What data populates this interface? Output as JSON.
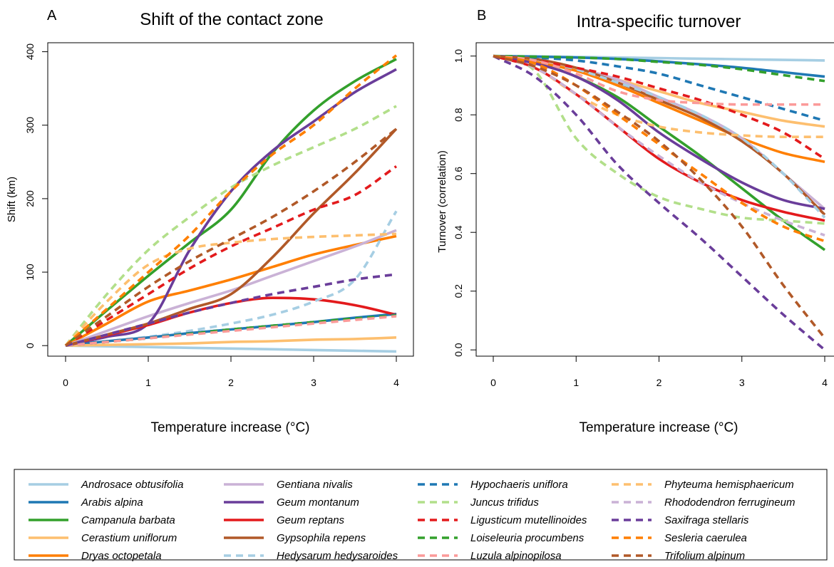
{
  "chart_data": [
    {
      "type": "line",
      "panel_letter": "A",
      "title": "Shift of the contact zone",
      "xlabel": "Temperature increase (°C)",
      "ylabel": "Shift (km)",
      "xlim": [
        0,
        4
      ],
      "ylim": [
        -10,
        400
      ],
      "xticks": [
        "0",
        "1",
        "2",
        "3",
        "4"
      ],
      "yticks": [
        "0",
        "100",
        "200",
        "300",
        "400"
      ],
      "ytick_values": [
        0,
        100,
        200,
        300,
        400
      ],
      "x": [
        0,
        0.5,
        1,
        1.5,
        2,
        2.5,
        3,
        3.5,
        4
      ],
      "series": [
        {
          "name": "Androsace obtusifolia",
          "color": "#a6cee3",
          "dash": false,
          "values": [
            0,
            -1,
            -2,
            -3,
            -4,
            -5,
            -6,
            -7,
            -8
          ]
        },
        {
          "name": "Arabis alpina",
          "color": "#1f78b4",
          "dash": false,
          "values": [
            0,
            6,
            11,
            17,
            22,
            27,
            32,
            38,
            43
          ]
        },
        {
          "name": "Campanula barbata",
          "color": "#33a02c",
          "dash": false,
          "values": [
            0,
            48,
            95,
            140,
            185,
            262,
            320,
            360,
            390
          ]
        },
        {
          "name": "Cerastium uniflorum",
          "color": "#fdbf6f",
          "dash": false,
          "values": [
            0,
            1,
            2,
            3,
            5,
            6,
            8,
            9,
            11
          ]
        },
        {
          "name": "Dryas octopetala",
          "color": "#ff7f00",
          "dash": false,
          "values": [
            0,
            30,
            60,
            75,
            90,
            107,
            124,
            137,
            149
          ]
        },
        {
          "name": "Gentiana nivalis",
          "color": "#cab2d6",
          "dash": false,
          "values": [
            0,
            20,
            40,
            58,
            75,
            95,
            115,
            135,
            157
          ]
        },
        {
          "name": "Geum montanum",
          "color": "#6a3d9a",
          "dash": false,
          "values": [
            0,
            12,
            30,
            130,
            210,
            265,
            305,
            345,
            376
          ]
        },
        {
          "name": "Geum reptans",
          "color": "#e31a1c",
          "dash": false,
          "values": [
            0,
            14,
            28,
            45,
            58,
            65,
            63,
            55,
            42
          ]
        },
        {
          "name": "Gypsophila repens",
          "color": "#b15928",
          "dash": false,
          "values": [
            0,
            15,
            30,
            50,
            70,
            120,
            180,
            235,
            295
          ]
        },
        {
          "name": "Hedysarum hedysaroides",
          "color": "#a6cee3",
          "dash": true,
          "values": [
            0,
            6,
            12,
            20,
            30,
            42,
            60,
            90,
            183
          ]
        },
        {
          "name": "Hypochaeris uniflora",
          "color": "#1f78b4",
          "dash": true,
          "values": [
            0,
            6,
            11,
            17,
            22,
            27,
            32,
            37,
            42
          ]
        },
        {
          "name": "Juncus trifidus",
          "color": "#b2df8a",
          "dash": true,
          "values": [
            0,
            70,
            130,
            175,
            215,
            245,
            270,
            295,
            326
          ]
        },
        {
          "name": "Ligusticum mutellinoides",
          "color": "#e31a1c",
          "dash": true,
          "values": [
            0,
            35,
            70,
            105,
            135,
            160,
            185,
            205,
            244
          ]
        },
        {
          "name": "Loiseleuria procumbens",
          "color": "#33a02c",
          "dash": true,
          "values": [
            0,
            5,
            10,
            16,
            22,
            27,
            32,
            37,
            41
          ]
        },
        {
          "name": "Luzula alpinopilosa",
          "color": "#fb9a99",
          "dash": true,
          "values": [
            0,
            5,
            10,
            15,
            20,
            25,
            30,
            35,
            40
          ]
        },
        {
          "name": "Phyteuma hemisphaericum",
          "color": "#fdbf6f",
          "dash": true,
          "values": [
            0,
            60,
            110,
            132,
            140,
            145,
            148,
            150,
            152
          ]
        },
        {
          "name": "Rhododendron ferrugineum",
          "color": "#cab2d6",
          "dash": true,
          "values": [
            0,
            15,
            30,
            45,
            58,
            70,
            80,
            90,
            97
          ]
        },
        {
          "name": "Saxifraga stellaris",
          "color": "#6a3d9a",
          "dash": true,
          "values": [
            0,
            15,
            30,
            45,
            58,
            70,
            80,
            90,
            97
          ]
        },
        {
          "name": "Sesleria caerulea",
          "color": "#ff7f00",
          "dash": true,
          "values": [
            0,
            50,
            100,
            150,
            210,
            260,
            300,
            350,
            395
          ]
        },
        {
          "name": "Trifolium alpinum",
          "color": "#b15928",
          "dash": true,
          "values": [
            0,
            40,
            80,
            115,
            145,
            175,
            210,
            250,
            295
          ]
        }
      ]
    },
    {
      "type": "line",
      "panel_letter": "B",
      "title": "Intra-specific turnover",
      "xlabel": "Temperature increase (°C)",
      "ylabel": "Turnover (correlation)",
      "xlim": [
        0,
        4
      ],
      "ylim": [
        0,
        1
      ],
      "xticks": [
        "0",
        "1",
        "2",
        "3",
        "4"
      ],
      "yticks": [
        "0.0",
        "0.2",
        "0.4",
        "0.6",
        "0.8",
        "1.0"
      ],
      "ytick_values": [
        0,
        0.2,
        0.4,
        0.6,
        0.8,
        1.0
      ],
      "x": [
        0,
        0.5,
        1,
        1.5,
        2,
        2.5,
        3,
        3.5,
        4
      ],
      "series": [
        {
          "name": "Androsace obtusifolia",
          "color": "#a6cee3",
          "dash": false,
          "values": [
            1.0,
            0.999,
            0.997,
            0.995,
            0.993,
            0.991,
            0.989,
            0.987,
            0.985
          ]
        },
        {
          "name": "Arabis alpina",
          "color": "#1f78b4",
          "dash": false,
          "values": [
            1.0,
            0.998,
            0.995,
            0.99,
            0.982,
            0.972,
            0.96,
            0.945,
            0.93
          ]
        },
        {
          "name": "Campanula barbata",
          "color": "#33a02c",
          "dash": false,
          "values": [
            1.0,
            0.98,
            0.93,
            0.86,
            0.76,
            0.66,
            0.55,
            0.44,
            0.34
          ]
        },
        {
          "name": "Cerastium uniflorum",
          "color": "#fdbf6f",
          "dash": false,
          "values": [
            1.0,
            0.99,
            0.96,
            0.92,
            0.88,
            0.84,
            0.81,
            0.78,
            0.76
          ]
        },
        {
          "name": "Dryas octopetala",
          "color": "#ff7f00",
          "dash": false,
          "values": [
            1.0,
            0.98,
            0.95,
            0.9,
            0.84,
            0.78,
            0.72,
            0.67,
            0.64
          ]
        },
        {
          "name": "Gentiana nivalis",
          "color": "#cab2d6",
          "dash": false,
          "values": [
            1.0,
            0.99,
            0.96,
            0.92,
            0.86,
            0.8,
            0.72,
            0.6,
            0.48
          ]
        },
        {
          "name": "Geum montanum",
          "color": "#6a3d9a",
          "dash": false,
          "values": [
            1.0,
            0.975,
            0.93,
            0.85,
            0.74,
            0.65,
            0.57,
            0.51,
            0.48
          ]
        },
        {
          "name": "Geum reptans",
          "color": "#e31a1c",
          "dash": false,
          "values": [
            1.0,
            0.96,
            0.87,
            0.76,
            0.65,
            0.57,
            0.51,
            0.47,
            0.44
          ]
        },
        {
          "name": "Gypsophila repens",
          "color": "#b15928",
          "dash": false,
          "values": [
            1.0,
            0.99,
            0.96,
            0.91,
            0.85,
            0.79,
            0.71,
            0.6,
            0.46
          ]
        },
        {
          "name": "Hedysarum hedysaroides",
          "color": "#a6cee3",
          "dash": true,
          "values": [
            1.0,
            0.985,
            0.955,
            0.91,
            0.86,
            0.8,
            0.72,
            0.6,
            0.45
          ]
        },
        {
          "name": "Hypochaeris uniflora",
          "color": "#1f78b4",
          "dash": true,
          "values": [
            1.0,
            0.995,
            0.985,
            0.965,
            0.94,
            0.9,
            0.86,
            0.82,
            0.78
          ]
        },
        {
          "name": "Juncus trifidus",
          "color": "#b2df8a",
          "dash": true,
          "values": [
            1.0,
            0.95,
            0.72,
            0.6,
            0.52,
            0.48,
            0.45,
            0.44,
            0.43
          ]
        },
        {
          "name": "Ligusticum mutellinoides",
          "color": "#e31a1c",
          "dash": true,
          "values": [
            1.0,
            0.985,
            0.96,
            0.93,
            0.89,
            0.85,
            0.8,
            0.74,
            0.65
          ]
        },
        {
          "name": "Loiseleuria procumbens",
          "color": "#33a02c",
          "dash": true,
          "values": [
            1.0,
            0.998,
            0.995,
            0.99,
            0.98,
            0.97,
            0.955,
            0.935,
            0.915
          ]
        },
        {
          "name": "Luzula alpinopilosa",
          "color": "#fb9a99",
          "dash": true,
          "values": [
            1.0,
            0.985,
            0.94,
            0.88,
            0.85,
            0.84,
            0.835,
            0.835,
            0.835
          ]
        },
        {
          "name": "Phyteuma hemisphaericum",
          "color": "#fdbf6f",
          "dash": true,
          "values": [
            1.0,
            0.96,
            0.87,
            0.8,
            0.76,
            0.74,
            0.73,
            0.725,
            0.725
          ]
        },
        {
          "name": "Rhododendron ferrugineum",
          "color": "#cab2d6",
          "dash": true,
          "values": [
            1.0,
            0.96,
            0.87,
            0.76,
            0.66,
            0.57,
            0.5,
            0.44,
            0.39
          ]
        },
        {
          "name": "Saxifraga stellaris",
          "color": "#6a3d9a",
          "dash": true,
          "values": [
            1.0,
            0.93,
            0.8,
            0.63,
            0.5,
            0.38,
            0.25,
            0.12,
            0.0
          ]
        },
        {
          "name": "Sesleria caerulea",
          "color": "#ff7f00",
          "dash": true,
          "values": [
            1.0,
            0.975,
            0.9,
            0.8,
            0.7,
            0.6,
            0.5,
            0.42,
            0.37
          ]
        },
        {
          "name": "Trifolium alpinum",
          "color": "#b15928",
          "dash": true,
          "values": [
            1.0,
            0.965,
            0.9,
            0.81,
            0.71,
            0.58,
            0.42,
            0.22,
            0.04
          ]
        }
      ]
    }
  ],
  "legend": {
    "columns": [
      [
        {
          "name": "Androsace obtusifolia",
          "color": "#a6cee3",
          "dash": false
        },
        {
          "name": "Arabis alpina",
          "color": "#1f78b4",
          "dash": false
        },
        {
          "name": "Campanula barbata",
          "color": "#33a02c",
          "dash": false
        },
        {
          "name": "Cerastium uniflorum",
          "color": "#fdbf6f",
          "dash": false
        },
        {
          "name": "Dryas octopetala",
          "color": "#ff7f00",
          "dash": false
        }
      ],
      [
        {
          "name": "Gentiana nivalis",
          "color": "#cab2d6",
          "dash": false
        },
        {
          "name": "Geum montanum",
          "color": "#6a3d9a",
          "dash": false
        },
        {
          "name": "Geum reptans",
          "color": "#e31a1c",
          "dash": false
        },
        {
          "name": "Gypsophila repens",
          "color": "#b15928",
          "dash": false
        },
        {
          "name": "Hedysarum hedysaroides",
          "color": "#a6cee3",
          "dash": true
        }
      ],
      [
        {
          "name": "Hypochaeris uniflora",
          "color": "#1f78b4",
          "dash": true
        },
        {
          "name": "Juncus trifidus",
          "color": "#b2df8a",
          "dash": true
        },
        {
          "name": "Ligusticum mutellinoides",
          "color": "#e31a1c",
          "dash": true
        },
        {
          "name": "Loiseleuria procumbens",
          "color": "#33a02c",
          "dash": true
        },
        {
          "name": "Luzula alpinopilosa",
          "color": "#fb9a99",
          "dash": true
        }
      ],
      [
        {
          "name": "Phyteuma hemisphaericum",
          "color": "#fdbf6f",
          "dash": true
        },
        {
          "name": "Rhododendron ferrugineum",
          "color": "#cab2d6",
          "dash": true
        },
        {
          "name": "Saxifraga stellaris",
          "color": "#6a3d9a",
          "dash": true
        },
        {
          "name": "Sesleria caerulea",
          "color": "#ff7f00",
          "dash": true
        },
        {
          "name": "Trifolium alpinum",
          "color": "#b15928",
          "dash": true
        }
      ]
    ]
  }
}
